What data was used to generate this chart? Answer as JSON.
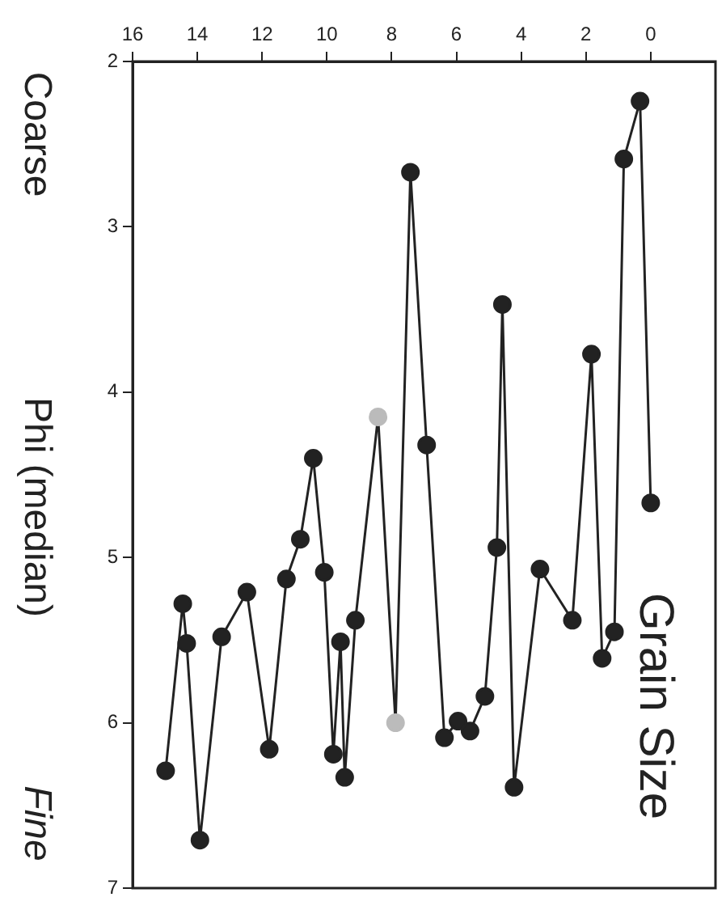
{
  "chart_data": {
    "type": "line",
    "title": "Grain Size",
    "ylabel": "Phi (median)",
    "annotations": [
      "Coarse",
      "Fine"
    ],
    "xlim": [
      16,
      -2
    ],
    "xticks": [
      16,
      14,
      12,
      10,
      8,
      6,
      4,
      2,
      0
    ],
    "ylim": [
      7,
      2
    ],
    "yticks": [
      2,
      3,
      4,
      5,
      6,
      7
    ],
    "grid": false,
    "legend": false,
    "marker": "circle",
    "line_style": "solid",
    "series": [
      {
        "color": "#222222",
        "x": [
          0,
          0.33,
          0.83,
          1.12,
          1.5,
          1.83,
          2.42,
          3.42,
          4.22,
          4.58,
          4.75,
          5.12,
          5.58,
          5.95,
          6.37,
          6.92,
          7.42,
          7.88,
          8.42,
          9.12,
          9.45,
          9.58,
          9.8,
          10.08,
          10.42,
          10.82,
          11.25,
          11.78,
          12.47,
          13.25,
          13.92,
          14.33,
          14.45,
          14.98
        ],
        "values": [
          4.67,
          2.24,
          2.59,
          5.45,
          5.61,
          3.77,
          5.38,
          5.07,
          6.39,
          3.47,
          4.94,
          5.84,
          6.05,
          5.99,
          6.09,
          4.32,
          2.67,
          6.0,
          4.15,
          5.38,
          6.33,
          5.51,
          6.19,
          5.09,
          4.4,
          4.89,
          5.13,
          6.16,
          5.21,
          5.48,
          6.71,
          5.52,
          5.28,
          6.29
        ],
        "colors": [
          "#222222",
          "#222222",
          "#222222",
          "#222222",
          "#222222",
          "#222222",
          "#222222",
          "#222222",
          "#222222",
          "#222222",
          "#222222",
          "#222222",
          "#222222",
          "#222222",
          "#222222",
          "#222222",
          "#222222",
          "#bbbbbb",
          "#bbbbbb",
          "#222222",
          "#222222",
          "#222222",
          "#222222",
          "#222222",
          "#222222",
          "#222222",
          "#222222",
          "#222222",
          "#222222",
          "#222222",
          "#222222",
          "#222222",
          "#222222",
          "#222222"
        ]
      }
    ]
  }
}
